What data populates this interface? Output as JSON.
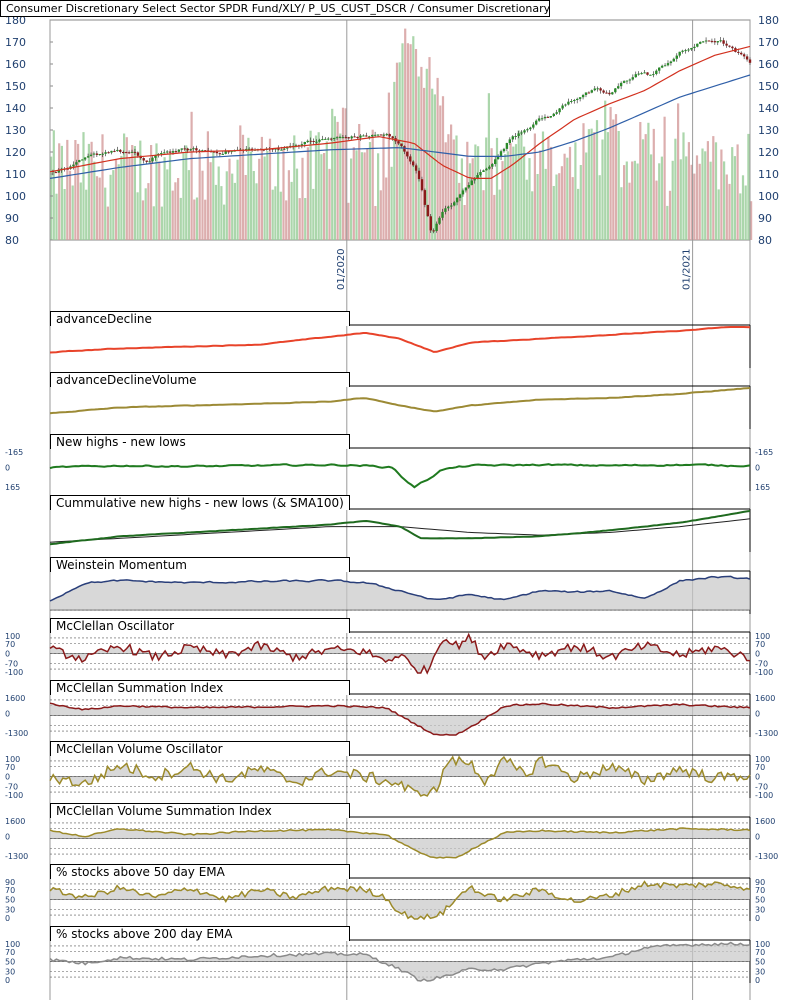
{
  "title": "Consumer Discretionary Select Sector SPDR Fund/XLY/ P_US_CUST_DSCR / Consumer Discretionary",
  "colors": {
    "axis_text": "#1f3f6f",
    "price_up": "#2a8a2a",
    "price_down": "#8a1a1a",
    "sma_short": "#d2301e",
    "sma_long": "#2f5fa8",
    "sma_mid": "#8b7a2a",
    "vol_up": "#9ccf9c",
    "vol_down": "#d6a0a0",
    "grid": "#bdbdbd",
    "panel_bg": "#ececec",
    "ad_line": "#e8432a",
    "adv_line": "#9c8a35",
    "nhnl_line": "#1f7a1f",
    "cum_line": "#1f6a1f",
    "weinstein": "#2a3f7a",
    "mcclellan": "#8a1a1a",
    "mcc_vol": "#9c8a2a",
    "ema50": "#9c8a2a",
    "ema200": "#8a8a8a"
  },
  "chart_data": [
    {
      "type": "candlestick",
      "title": "Consumer Discretionary Select Sector SPDR Fund/XLY/ P_US_CUST_DSCR / Consumer Discretionary",
      "y_ticks": [
        80,
        90,
        100,
        110,
        120,
        130,
        140,
        150,
        160,
        170,
        180
      ],
      "x_tick_labels": [
        "01/2020",
        "01/2021"
      ],
      "x_range": [
        "2019-05",
        "2021-06"
      ],
      "price_anchors": [
        [
          0,
          111
        ],
        [
          0.03,
          113
        ],
        [
          0.06,
          118
        ],
        [
          0.09,
          121
        ],
        [
          0.12,
          119
        ],
        [
          0.14,
          115
        ],
        [
          0.16,
          120
        ],
        [
          0.2,
          121
        ],
        [
          0.24,
          120
        ],
        [
          0.28,
          121
        ],
        [
          0.32,
          121
        ],
        [
          0.36,
          124
        ],
        [
          0.4,
          126
        ],
        [
          0.44,
          127
        ],
        [
          0.48,
          128
        ],
        [
          0.5,
          123
        ],
        [
          0.52,
          114
        ],
        [
          0.53,
          105
        ],
        [
          0.545,
          83
        ],
        [
          0.56,
          92
        ],
        [
          0.58,
          98
        ],
        [
          0.6,
          106
        ],
        [
          0.62,
          112
        ],
        [
          0.64,
          118
        ],
        [
          0.66,
          127
        ],
        [
          0.68,
          131
        ],
        [
          0.7,
          135
        ],
        [
          0.72,
          137
        ],
        [
          0.74,
          143
        ],
        [
          0.76,
          146
        ],
        [
          0.78,
          148
        ],
        [
          0.8,
          146
        ],
        [
          0.82,
          152
        ],
        [
          0.84,
          156
        ],
        [
          0.86,
          155
        ],
        [
          0.88,
          160
        ],
        [
          0.9,
          165
        ],
        [
          0.92,
          168
        ],
        [
          0.94,
          171
        ],
        [
          0.96,
          170
        ],
        [
          0.98,
          165
        ],
        [
          1,
          161
        ]
      ],
      "sma_short_anchors": [
        [
          0,
          111
        ],
        [
          0.1,
          117
        ],
        [
          0.2,
          120
        ],
        [
          0.3,
          121
        ],
        [
          0.4,
          124
        ],
        [
          0.47,
          127
        ],
        [
          0.52,
          124
        ],
        [
          0.56,
          114
        ],
        [
          0.6,
          108
        ],
        [
          0.63,
          108
        ],
        [
          0.66,
          114
        ],
        [
          0.7,
          124
        ],
        [
          0.75,
          135
        ],
        [
          0.8,
          142
        ],
        [
          0.85,
          148
        ],
        [
          0.9,
          157
        ],
        [
          0.95,
          164
        ],
        [
          1,
          168
        ]
      ],
      "sma_long_anchors": [
        [
          0,
          108
        ],
        [
          0.1,
          113
        ],
        [
          0.2,
          117
        ],
        [
          0.3,
          119
        ],
        [
          0.4,
          121
        ],
        [
          0.5,
          122
        ],
        [
          0.55,
          120
        ],
        [
          0.6,
          118
        ],
        [
          0.65,
          118
        ],
        [
          0.7,
          120
        ],
        [
          0.75,
          125
        ],
        [
          0.8,
          131
        ],
        [
          0.85,
          138
        ],
        [
          0.9,
          145
        ],
        [
          0.95,
          150
        ],
        [
          1,
          155
        ]
      ],
      "volume_spikes": [
        [
          0.41,
          0.6
        ],
        [
          0.5,
          1.0
        ],
        [
          0.51,
          0.9
        ],
        [
          0.52,
          0.95
        ],
        [
          0.53,
          0.85
        ],
        [
          0.54,
          0.7
        ],
        [
          0.55,
          0.75
        ],
        [
          0.57,
          0.6
        ],
        [
          0.45,
          0.55
        ],
        [
          0.66,
          0.5
        ],
        [
          0.77,
          0.55
        ],
        [
          0.8,
          0.7
        ],
        [
          0.85,
          0.55
        ],
        [
          0.9,
          0.5
        ],
        [
          0.94,
          0.45
        ]
      ]
    },
    {
      "type": "line",
      "title": "advanceDecline",
      "anchors": [
        [
          0,
          0.35
        ],
        [
          0.1,
          0.45
        ],
        [
          0.2,
          0.5
        ],
        [
          0.3,
          0.55
        ],
        [
          0.4,
          0.75
        ],
        [
          0.45,
          0.85
        ],
        [
          0.5,
          0.7
        ],
        [
          0.55,
          0.35
        ],
        [
          0.6,
          0.6
        ],
        [
          0.7,
          0.7
        ],
        [
          0.8,
          0.8
        ],
        [
          0.9,
          0.9
        ],
        [
          0.97,
          1.0
        ],
        [
          1,
          1.0
        ]
      ]
    },
    {
      "type": "line",
      "title": "advanceDeclineVolume",
      "anchors": [
        [
          0,
          0.35
        ],
        [
          0.1,
          0.5
        ],
        [
          0.2,
          0.55
        ],
        [
          0.3,
          0.6
        ],
        [
          0.4,
          0.65
        ],
        [
          0.45,
          0.75
        ],
        [
          0.5,
          0.55
        ],
        [
          0.55,
          0.4
        ],
        [
          0.6,
          0.55
        ],
        [
          0.7,
          0.7
        ],
        [
          0.8,
          0.75
        ],
        [
          0.9,
          0.85
        ],
        [
          1,
          1.0
        ]
      ]
    },
    {
      "type": "line",
      "title": "New highs - new lows",
      "y_ticks": [
        -165,
        0,
        165
      ],
      "anchors": [
        [
          0,
          0.55
        ],
        [
          0.1,
          0.6
        ],
        [
          0.2,
          0.58
        ],
        [
          0.3,
          0.6
        ],
        [
          0.4,
          0.62
        ],
        [
          0.45,
          0.6
        ],
        [
          0.49,
          0.55
        ],
        [
          0.5,
          0.35
        ],
        [
          0.52,
          0.05
        ],
        [
          0.54,
          0.25
        ],
        [
          0.56,
          0.5
        ],
        [
          0.6,
          0.6
        ],
        [
          0.7,
          0.62
        ],
        [
          0.8,
          0.6
        ],
        [
          0.9,
          0.62
        ],
        [
          1,
          0.6
        ]
      ]
    },
    {
      "type": "line",
      "title": "Cummulative new highs - new lows (& SMA100)",
      "anchors": [
        [
          0,
          0.15
        ],
        [
          0.1,
          0.35
        ],
        [
          0.2,
          0.45
        ],
        [
          0.3,
          0.55
        ],
        [
          0.4,
          0.65
        ],
        [
          0.45,
          0.75
        ],
        [
          0.5,
          0.6
        ],
        [
          0.53,
          0.3
        ],
        [
          0.6,
          0.3
        ],
        [
          0.7,
          0.35
        ],
        [
          0.8,
          0.5
        ],
        [
          0.9,
          0.7
        ],
        [
          1,
          1.0
        ]
      ],
      "sma_anchors": [
        [
          0,
          0.2
        ],
        [
          0.2,
          0.4
        ],
        [
          0.4,
          0.6
        ],
        [
          0.5,
          0.6
        ],
        [
          0.6,
          0.45
        ],
        [
          0.7,
          0.38
        ],
        [
          0.8,
          0.45
        ],
        [
          0.9,
          0.6
        ],
        [
          1,
          0.8
        ]
      ]
    },
    {
      "type": "area",
      "title": "Weinstein Momentum",
      "anchors": [
        [
          0,
          0.3
        ],
        [
          0.05,
          0.75
        ],
        [
          0.1,
          0.8
        ],
        [
          0.2,
          0.75
        ],
        [
          0.3,
          0.78
        ],
        [
          0.4,
          0.8
        ],
        [
          0.45,
          0.75
        ],
        [
          0.5,
          0.55
        ],
        [
          0.55,
          0.3
        ],
        [
          0.6,
          0.45
        ],
        [
          0.65,
          0.3
        ],
        [
          0.7,
          0.55
        ],
        [
          0.75,
          0.5
        ],
        [
          0.8,
          0.55
        ],
        [
          0.85,
          0.35
        ],
        [
          0.9,
          0.8
        ],
        [
          0.95,
          0.9
        ],
        [
          1,
          0.85
        ]
      ]
    },
    {
      "type": "area",
      "title": "McClellan Oscillator",
      "y_ticks": [
        100,
        70,
        0,
        -70,
        -100
      ],
      "anchors": [
        [
          0,
          0.6
        ],
        [
          0.05,
          0.35
        ],
        [
          0.1,
          0.7
        ],
        [
          0.15,
          0.4
        ],
        [
          0.2,
          0.65
        ],
        [
          0.25,
          0.45
        ],
        [
          0.3,
          0.7
        ],
        [
          0.35,
          0.4
        ],
        [
          0.4,
          0.6
        ],
        [
          0.45,
          0.55
        ],
        [
          0.48,
          0.3
        ],
        [
          0.5,
          0.5
        ],
        [
          0.52,
          0.1
        ],
        [
          0.54,
          0.05
        ],
        [
          0.56,
          0.95
        ],
        [
          0.58,
          0.7
        ],
        [
          0.6,
          0.9
        ],
        [
          0.62,
          0.4
        ],
        [
          0.65,
          0.75
        ],
        [
          0.7,
          0.45
        ],
        [
          0.75,
          0.7
        ],
        [
          0.8,
          0.4
        ],
        [
          0.85,
          0.7
        ],
        [
          0.9,
          0.45
        ],
        [
          0.95,
          0.65
        ],
        [
          1,
          0.4
        ]
      ]
    },
    {
      "type": "area",
      "title": "McClellan Summation Index",
      "y_ticks": [
        1600,
        0,
        -1300
      ],
      "anchors": [
        [
          0,
          0.8
        ],
        [
          0.05,
          0.65
        ],
        [
          0.1,
          0.75
        ],
        [
          0.2,
          0.7
        ],
        [
          0.3,
          0.72
        ],
        [
          0.4,
          0.75
        ],
        [
          0.48,
          0.7
        ],
        [
          0.52,
          0.3
        ],
        [
          0.55,
          0.0
        ],
        [
          0.58,
          0.0
        ],
        [
          0.61,
          0.3
        ],
        [
          0.65,
          0.75
        ],
        [
          0.7,
          0.8
        ],
        [
          0.8,
          0.7
        ],
        [
          0.9,
          0.78
        ],
        [
          1,
          0.7
        ]
      ]
    },
    {
      "type": "area",
      "title": "McClellan Volume Oscillator",
      "y_ticks": [
        100,
        70,
        0,
        -70,
        -100
      ],
      "anchors": [
        [
          0,
          0.5
        ],
        [
          0.05,
          0.3
        ],
        [
          0.1,
          0.8
        ],
        [
          0.15,
          0.5
        ],
        [
          0.2,
          0.75
        ],
        [
          0.25,
          0.4
        ],
        [
          0.3,
          0.7
        ],
        [
          0.35,
          0.35
        ],
        [
          0.4,
          0.65
        ],
        [
          0.45,
          0.5
        ],
        [
          0.5,
          0.3
        ],
        [
          0.52,
          0.05
        ],
        [
          0.55,
          0.1
        ],
        [
          0.57,
          0.95
        ],
        [
          0.6,
          0.85
        ],
        [
          0.62,
          0.4
        ],
        [
          0.65,
          0.9
        ],
        [
          0.68,
          0.5
        ],
        [
          0.7,
          0.95
        ],
        [
          0.75,
          0.45
        ],
        [
          0.8,
          0.75
        ],
        [
          0.85,
          0.4
        ],
        [
          0.9,
          0.7
        ],
        [
          0.95,
          0.45
        ],
        [
          1,
          0.55
        ]
      ]
    },
    {
      "type": "area",
      "title": "McClellan Volume Summation Index",
      "y_ticks": [
        1600,
        0,
        -1300
      ],
      "anchors": [
        [
          0,
          0.7
        ],
        [
          0.05,
          0.55
        ],
        [
          0.1,
          0.75
        ],
        [
          0.2,
          0.6
        ],
        [
          0.3,
          0.7
        ],
        [
          0.4,
          0.72
        ],
        [
          0.48,
          0.6
        ],
        [
          0.52,
          0.2
        ],
        [
          0.55,
          0.0
        ],
        [
          0.58,
          0.0
        ],
        [
          0.61,
          0.3
        ],
        [
          0.65,
          0.65
        ],
        [
          0.7,
          0.7
        ],
        [
          0.8,
          0.65
        ],
        [
          0.9,
          0.75
        ],
        [
          1,
          0.72
        ]
      ]
    },
    {
      "type": "area",
      "title": "% stocks above 50 day EMA",
      "y_ticks": [
        90,
        70,
        50,
        30,
        0
      ],
      "anchors": [
        [
          0,
          0.75
        ],
        [
          0.05,
          0.55
        ],
        [
          0.1,
          0.8
        ],
        [
          0.15,
          0.55
        ],
        [
          0.2,
          0.8
        ],
        [
          0.25,
          0.5
        ],
        [
          0.3,
          0.75
        ],
        [
          0.35,
          0.55
        ],
        [
          0.4,
          0.8
        ],
        [
          0.45,
          0.75
        ],
        [
          0.48,
          0.55
        ],
        [
          0.5,
          0.15
        ],
        [
          0.53,
          0.0
        ],
        [
          0.56,
          0.15
        ],
        [
          0.6,
          0.85
        ],
        [
          0.62,
          0.6
        ],
        [
          0.65,
          0.5
        ],
        [
          0.7,
          0.75
        ],
        [
          0.75,
          0.45
        ],
        [
          0.8,
          0.6
        ],
        [
          0.85,
          0.9
        ],
        [
          0.9,
          0.85
        ],
        [
          0.95,
          0.9
        ],
        [
          1,
          0.8
        ]
      ]
    },
    {
      "type": "area",
      "title": "% stocks above 200 day EMA",
      "y_ticks": [
        100,
        70,
        50,
        30,
        0
      ],
      "anchors": [
        [
          0,
          0.55
        ],
        [
          0.05,
          0.45
        ],
        [
          0.1,
          0.6
        ],
        [
          0.2,
          0.55
        ],
        [
          0.3,
          0.65
        ],
        [
          0.4,
          0.7
        ],
        [
          0.45,
          0.68
        ],
        [
          0.5,
          0.3
        ],
        [
          0.53,
          0.0
        ],
        [
          0.56,
          0.1
        ],
        [
          0.6,
          0.3
        ],
        [
          0.65,
          0.3
        ],
        [
          0.7,
          0.45
        ],
        [
          0.75,
          0.55
        ],
        [
          0.8,
          0.6
        ],
        [
          0.85,
          0.85
        ],
        [
          0.9,
          0.92
        ],
        [
          0.95,
          0.95
        ],
        [
          1,
          0.95
        ]
      ]
    }
  ]
}
